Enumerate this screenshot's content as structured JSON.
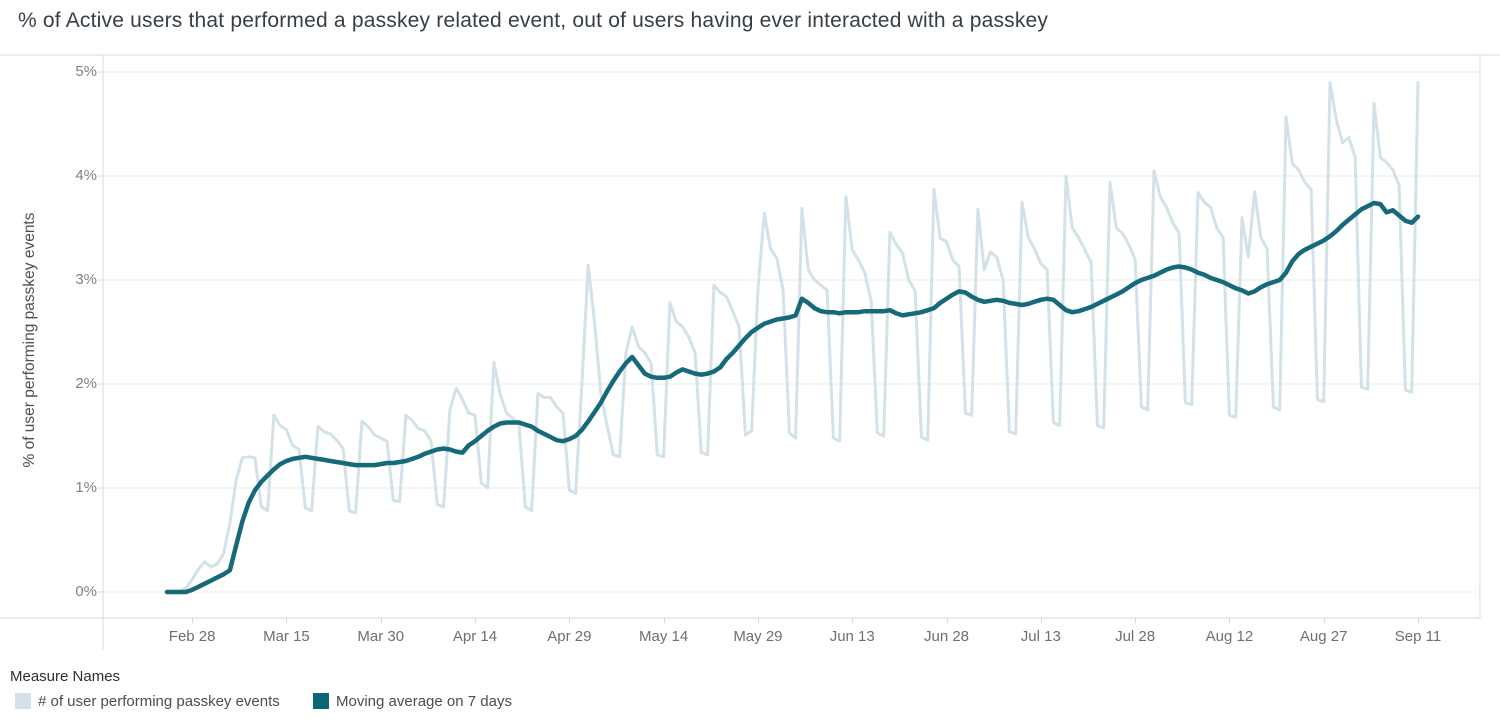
{
  "title": "% of Active users that performed a passkey related event, out of users having ever interacted with a passkey",
  "y_axis": {
    "title": "% of user performing passkey events",
    "tick_labels": [
      "0%",
      "1%",
      "2%",
      "3%",
      "4%",
      "5%"
    ],
    "tick_values": [
      0,
      1,
      2,
      3,
      4,
      5
    ]
  },
  "x_axis": {
    "tick_labels": [
      "Feb 28",
      "Mar 15",
      "Mar 30",
      "Apr 14",
      "Apr 29",
      "May 14",
      "May 29",
      "Jun 13",
      "Jun 28",
      "Jul 13",
      "Jul 28",
      "Aug 12",
      "Aug 27",
      "Sep 11"
    ],
    "tick_day_index": [
      4,
      19,
      34,
      49,
      64,
      79,
      94,
      109,
      124,
      139,
      154,
      169,
      184,
      199
    ]
  },
  "legend": {
    "title": "Measure Names",
    "items": [
      {
        "label": "# of user performing passkey events",
        "color": "#d2e2e8"
      },
      {
        "label": "Moving average on 7 days",
        "color": "#0e6577"
      }
    ]
  },
  "colors": {
    "daily_line": "#d2e2e8",
    "moving_average_line": "#15697b",
    "gridline": "#ebebeb",
    "zero_gridline": "#c9c9c9",
    "axis_border": "#d8d8d8",
    "title_text": "#363f48",
    "tick_text": "#6f6f6f"
  },
  "chart_data": {
    "type": "line",
    "x_unit": "day",
    "n_points": 200,
    "x_start_label": "Feb 24",
    "x_end_label": "Sep 11",
    "ylim": [
      0,
      5
    ],
    "grid": "horizontal-only",
    "legend_position": "bottom-left",
    "series": [
      {
        "name": "# of user performing passkey events",
        "color": "#d2e2e8",
        "width": 3,
        "values": [
          0.0,
          0.0,
          0.01,
          0.04,
          0.12,
          0.22,
          0.29,
          0.24,
          0.27,
          0.37,
          0.66,
          1.08,
          1.29,
          1.3,
          1.29,
          0.82,
          0.78,
          1.7,
          1.6,
          1.56,
          1.41,
          1.37,
          0.81,
          0.78,
          1.59,
          1.54,
          1.52,
          1.46,
          1.38,
          0.78,
          0.76,
          1.64,
          1.59,
          1.51,
          1.48,
          1.45,
          0.88,
          0.87,
          1.7,
          1.65,
          1.57,
          1.55,
          1.45,
          0.84,
          0.82,
          1.75,
          1.96,
          1.85,
          1.72,
          1.7,
          1.05,
          1.0,
          2.21,
          1.9,
          1.72,
          1.67,
          1.6,
          0.82,
          0.78,
          1.91,
          1.87,
          1.87,
          1.78,
          1.72,
          0.98,
          0.95,
          2.0,
          3.14,
          2.6,
          1.91,
          1.6,
          1.32,
          1.3,
          2.3,
          2.55,
          2.36,
          2.3,
          2.2,
          1.32,
          1.3,
          2.78,
          2.6,
          2.55,
          2.45,
          2.3,
          1.34,
          1.32,
          2.95,
          2.88,
          2.84,
          2.7,
          2.55,
          1.51,
          1.55,
          2.9,
          3.64,
          3.3,
          3.21,
          2.9,
          1.53,
          1.48,
          3.69,
          3.1,
          3.0,
          2.95,
          2.9,
          1.48,
          1.45,
          3.8,
          3.29,
          3.19,
          3.07,
          2.8,
          1.53,
          1.5,
          3.46,
          3.34,
          3.26,
          3.0,
          2.9,
          1.49,
          1.46,
          3.87,
          3.4,
          3.37,
          3.19,
          3.13,
          1.72,
          1.7,
          3.68,
          3.1,
          3.27,
          3.22,
          3.0,
          1.54,
          1.52,
          3.75,
          3.41,
          3.3,
          3.16,
          3.1,
          1.63,
          1.6,
          4.0,
          3.5,
          3.41,
          3.29,
          3.17,
          1.6,
          1.58,
          3.94,
          3.5,
          3.45,
          3.34,
          3.2,
          1.78,
          1.75,
          4.05,
          3.8,
          3.7,
          3.55,
          3.45,
          1.82,
          1.8,
          3.84,
          3.75,
          3.7,
          3.5,
          3.41,
          1.7,
          1.68,
          3.6,
          3.22,
          3.85,
          3.41,
          3.3,
          1.78,
          1.75,
          4.57,
          4.12,
          4.06,
          3.94,
          3.87,
          1.85,
          1.83,
          4.9,
          4.54,
          4.32,
          4.37,
          4.18,
          1.97,
          1.95,
          4.7,
          4.18,
          4.13,
          4.06,
          3.91,
          1.94,
          1.92,
          4.9
        ]
      },
      {
        "name": "Moving average on 7 days",
        "color": "#15697b",
        "width": 4.5,
        "values": [
          0.0,
          0.0,
          0.0,
          0.0,
          0.02,
          0.05,
          0.08,
          0.11,
          0.14,
          0.17,
          0.21,
          0.45,
          0.68,
          0.86,
          0.98,
          1.06,
          1.12,
          1.18,
          1.23,
          1.26,
          1.28,
          1.29,
          1.3,
          1.29,
          1.28,
          1.27,
          1.26,
          1.25,
          1.24,
          1.23,
          1.22,
          1.22,
          1.22,
          1.22,
          1.23,
          1.24,
          1.24,
          1.25,
          1.26,
          1.28,
          1.3,
          1.33,
          1.35,
          1.37,
          1.38,
          1.37,
          1.35,
          1.34,
          1.41,
          1.45,
          1.5,
          1.55,
          1.59,
          1.62,
          1.63,
          1.63,
          1.63,
          1.61,
          1.59,
          1.55,
          1.52,
          1.49,
          1.46,
          1.45,
          1.47,
          1.5,
          1.56,
          1.64,
          1.73,
          1.82,
          1.93,
          2.03,
          2.12,
          2.2,
          2.26,
          2.18,
          2.1,
          2.07,
          2.06,
          2.06,
          2.07,
          2.11,
          2.14,
          2.12,
          2.1,
          2.09,
          2.1,
          2.12,
          2.16,
          2.24,
          2.3,
          2.37,
          2.44,
          2.5,
          2.54,
          2.58,
          2.6,
          2.62,
          2.63,
          2.64,
          2.66,
          2.82,
          2.78,
          2.73,
          2.7,
          2.69,
          2.69,
          2.68,
          2.69,
          2.69,
          2.69,
          2.7,
          2.7,
          2.7,
          2.7,
          2.71,
          2.68,
          2.66,
          2.67,
          2.68,
          2.69,
          2.71,
          2.73,
          2.78,
          2.82,
          2.86,
          2.89,
          2.88,
          2.84,
          2.81,
          2.79,
          2.8,
          2.81,
          2.8,
          2.78,
          2.77,
          2.76,
          2.77,
          2.79,
          2.81,
          2.82,
          2.81,
          2.76,
          2.71,
          2.69,
          2.7,
          2.72,
          2.74,
          2.77,
          2.8,
          2.83,
          2.86,
          2.89,
          2.93,
          2.97,
          3.0,
          3.02,
          3.04,
          3.07,
          3.1,
          3.12,
          3.13,
          3.12,
          3.1,
          3.07,
          3.05,
          3.02,
          3.0,
          2.98,
          2.95,
          2.92,
          2.9,
          2.87,
          2.89,
          2.93,
          2.96,
          2.98,
          3.0,
          3.07,
          3.18,
          3.25,
          3.29,
          3.32,
          3.35,
          3.38,
          3.42,
          3.47,
          3.53,
          3.58,
          3.63,
          3.68,
          3.71,
          3.74,
          3.73,
          3.65,
          3.67,
          3.62,
          3.57,
          3.55,
          3.61
        ]
      }
    ]
  }
}
